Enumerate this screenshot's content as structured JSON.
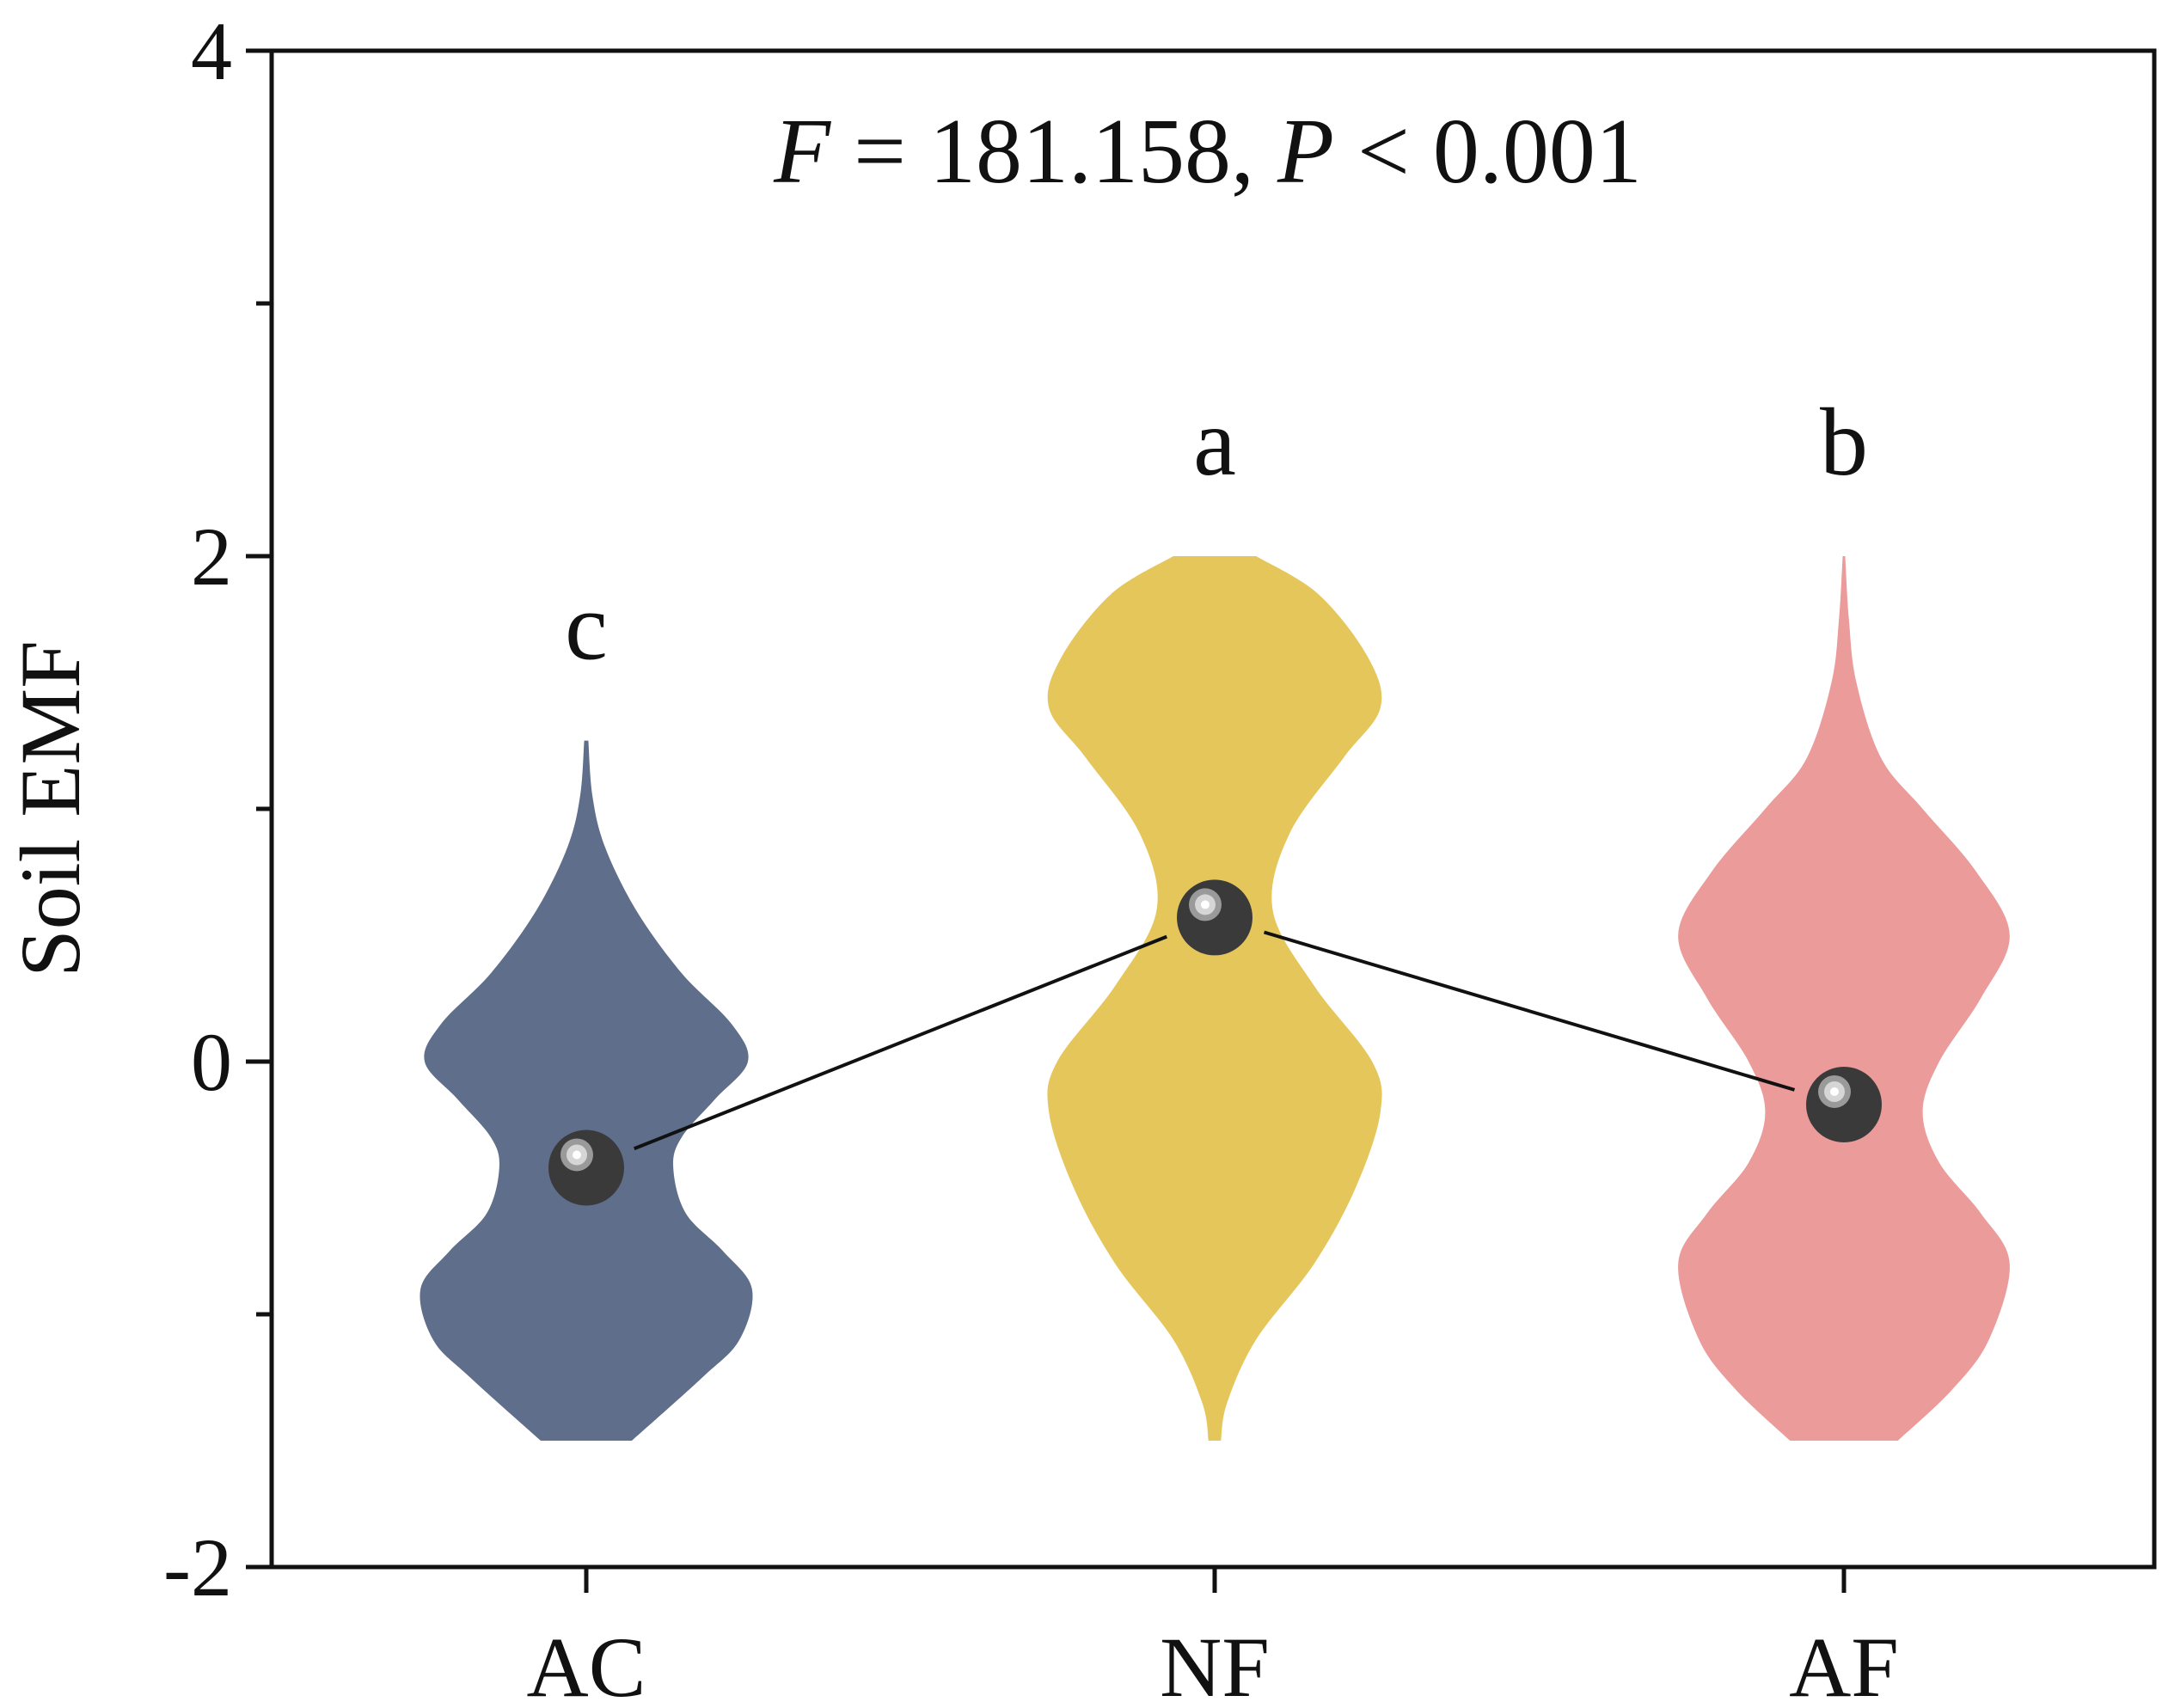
{
  "chart_data": {
    "type": "violin",
    "ylabel": "Soil EMF",
    "ylim": [
      -2,
      4
    ],
    "yticks": [
      -2,
      0,
      2,
      4
    ],
    "categories": [
      "AC",
      "NF",
      "AF"
    ],
    "annotation": {
      "F_symbol": "F",
      "F_value": " = 181.158, ",
      "P_symbol": "P",
      "P_value": " < 0.001"
    },
    "groups": [
      {
        "name": "AC",
        "color": "#5f6e8a",
        "letter": "c",
        "mean": -0.42,
        "min": -1.5,
        "max": 1.27,
        "density": [
          [
            -1.5,
            0.11
          ],
          [
            -1.25,
            0.28
          ],
          [
            -1.1,
            0.37
          ],
          [
            -0.9,
            0.4
          ],
          [
            -0.75,
            0.33
          ],
          [
            -0.6,
            0.24
          ],
          [
            -0.42,
            0.21
          ],
          [
            -0.3,
            0.23
          ],
          [
            -0.15,
            0.31
          ],
          [
            0.0,
            0.39
          ],
          [
            0.15,
            0.35
          ],
          [
            0.35,
            0.23
          ],
          [
            0.6,
            0.12
          ],
          [
            0.85,
            0.045
          ],
          [
            1.05,
            0.015
          ],
          [
            1.27,
            0.005
          ]
        ]
      },
      {
        "name": "NF",
        "color": "#e5c65b",
        "letter": "a",
        "mean": 0.57,
        "min": -1.5,
        "max": 2.0,
        "density": [
          [
            -1.5,
            0.015
          ],
          [
            -1.35,
            0.03
          ],
          [
            -1.1,
            0.1
          ],
          [
            -0.8,
            0.24
          ],
          [
            -0.5,
            0.34
          ],
          [
            -0.2,
            0.4
          ],
          [
            0.0,
            0.38
          ],
          [
            0.3,
            0.24
          ],
          [
            0.6,
            0.14
          ],
          [
            0.9,
            0.18
          ],
          [
            1.2,
            0.31
          ],
          [
            1.4,
            0.4
          ],
          [
            1.6,
            0.37
          ],
          [
            1.85,
            0.25
          ],
          [
            2.0,
            0.1
          ]
        ]
      },
      {
        "name": "AF",
        "color": "#ea9b9a",
        "letter": "b",
        "mean": -0.17,
        "min": -1.5,
        "max": 2.0,
        "density": [
          [
            -1.5,
            0.13
          ],
          [
            -1.3,
            0.26
          ],
          [
            -1.1,
            0.35
          ],
          [
            -0.8,
            0.4
          ],
          [
            -0.6,
            0.33
          ],
          [
            -0.4,
            0.23
          ],
          [
            -0.2,
            0.19
          ],
          [
            0.0,
            0.23
          ],
          [
            0.25,
            0.33
          ],
          [
            0.5,
            0.4
          ],
          [
            0.75,
            0.32
          ],
          [
            1.0,
            0.19
          ],
          [
            1.2,
            0.09
          ],
          [
            1.5,
            0.03
          ],
          [
            1.75,
            0.012
          ],
          [
            2.0,
            0.003
          ]
        ]
      }
    ],
    "grid": false,
    "legend": "none"
  }
}
